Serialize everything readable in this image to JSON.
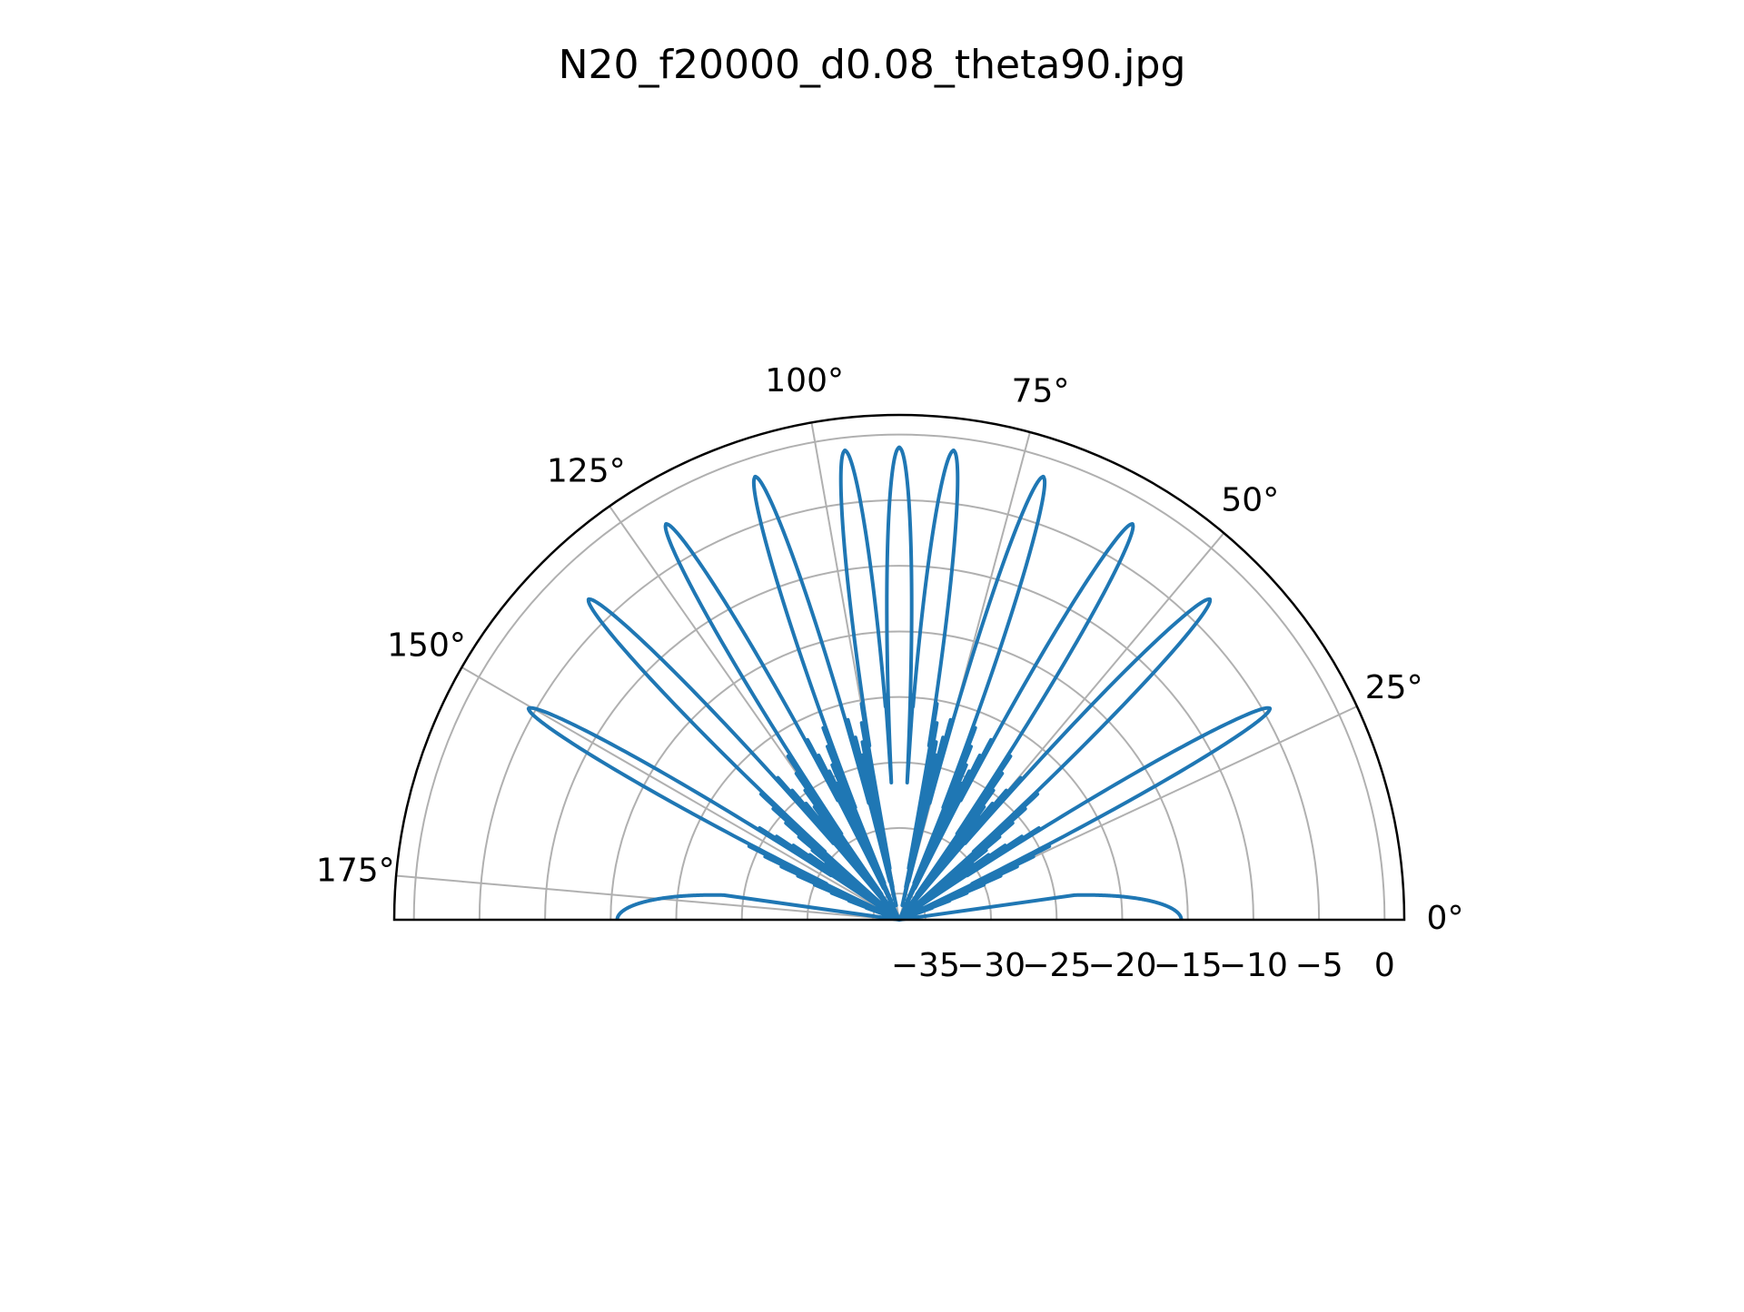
{
  "title": "N20_f20000_d0.08_theta90.jpg",
  "chart_data": {
    "type": "polar-line",
    "title": "N20_f20000_d0.08_theta90.jpg",
    "theta_range_deg": [
      0,
      180
    ],
    "r_range": [
      -37,
      1.5
    ],
    "angle_ticks": [
      {
        "deg": 0,
        "label": "0°"
      },
      {
        "deg": 25,
        "label": "25°"
      },
      {
        "deg": 50,
        "label": "50°"
      },
      {
        "deg": 75,
        "label": "75°"
      },
      {
        "deg": 100,
        "label": "100°"
      },
      {
        "deg": 125,
        "label": "125°"
      },
      {
        "deg": 150,
        "label": "150°"
      },
      {
        "deg": 175,
        "label": "175°"
      }
    ],
    "radial_ticks": [
      {
        "value": -35,
        "label": "−35"
      },
      {
        "value": -30,
        "label": "−30"
      },
      {
        "value": -25,
        "label": "−25"
      },
      {
        "value": -20,
        "label": "−20"
      },
      {
        "value": -15,
        "label": "−15"
      },
      {
        "value": -10,
        "label": "−10"
      },
      {
        "value": -5,
        "label": "−5"
      },
      {
        "value": 0,
        "label": "0"
      }
    ],
    "grid": true,
    "series": [
      {
        "color": "#1f77b4",
        "description_points_deg_db": [
          [
            0,
            -15.5
          ],
          [
            8.3,
            -17
          ],
          [
            16.6,
            -17
          ],
          [
            24.9,
            -17
          ],
          [
            33.2,
            -17
          ],
          [
            41.5,
            -17
          ],
          [
            49.8,
            -17
          ],
          [
            58.1,
            -17
          ],
          [
            66.4,
            -17
          ],
          [
            74.7,
            -17
          ]
        ],
        "grating_lobes": [
          {
            "theta": 29.7,
            "r": -4.5
          },
          {
            "theta": 45.9,
            "r": -3.0
          },
          {
            "theta": 59.5,
            "r": -2.0
          },
          {
            "theta": 72.0,
            "r": -1.5
          },
          {
            "theta": 83.4,
            "r": -1.0
          },
          {
            "theta": 90.0,
            "r": -1.0
          },
          {
            "theta": 96.6,
            "r": -1.0
          },
          {
            "theta": 108.0,
            "r": -1.5
          },
          {
            "theta": 120.5,
            "r": -2.0
          },
          {
            "theta": 134.1,
            "r": -3.0
          },
          {
            "theta": 150.3,
            "r": -4.5
          }
        ],
        "lobe_width_deg": 1.6,
        "sidelobe_level": -20,
        "floor_level": -37,
        "endfire_level": -15.5
      }
    ]
  }
}
